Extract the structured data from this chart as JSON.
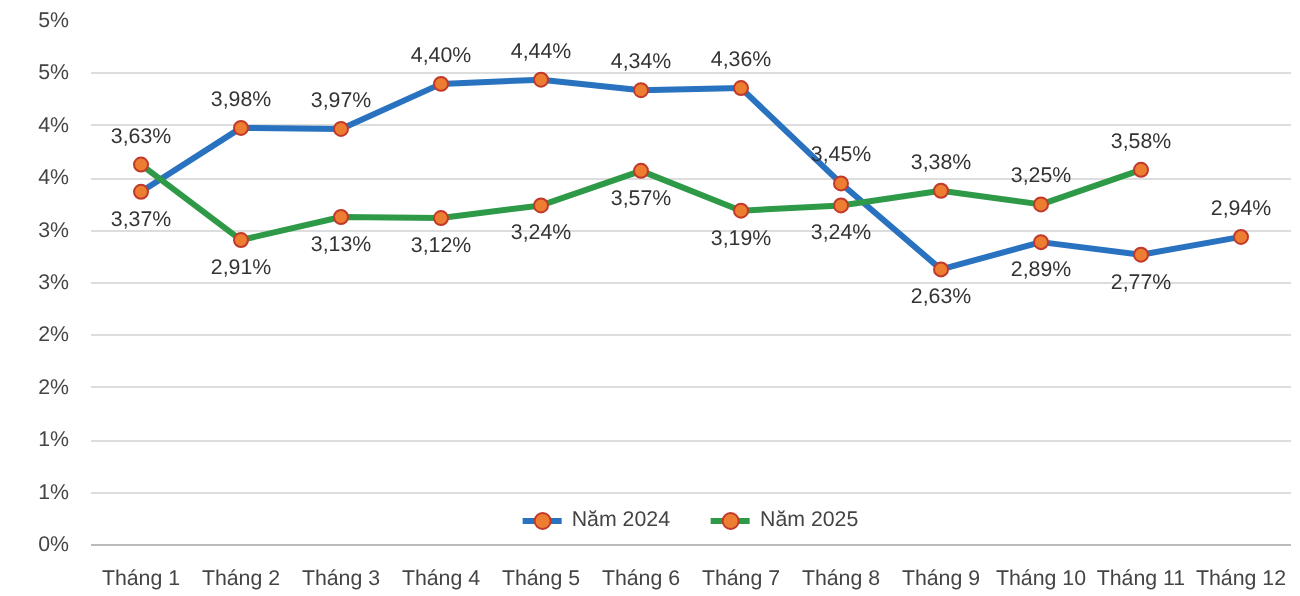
{
  "chart_data": {
    "type": "line",
    "categories": [
      "Tháng 1",
      "Tháng 2",
      "Tháng 3",
      "Tháng 4",
      "Tháng 5",
      "Tháng 6",
      "Tháng 7",
      "Tháng 8",
      "Tháng 9",
      "Tháng 10",
      "Tháng 11",
      "Tháng 12"
    ],
    "series": [
      {
        "name": "Năm 2024",
        "color": "#2872c0",
        "values": [
          3.37,
          3.98,
          3.97,
          4.4,
          4.44,
          4.34,
          4.36,
          3.45,
          2.63,
          2.89,
          2.77,
          2.94
        ],
        "value_labels": [
          "3,37%",
          "3,98%",
          "3,97%",
          "4,40%",
          "4,44%",
          "4,34%",
          "4,36%",
          "3,45%",
          "2,63%",
          "2,89%",
          "2,77%",
          "2,94%"
        ]
      },
      {
        "name": "Năm 2025",
        "color": "#2e9a48",
        "values": [
          3.63,
          2.91,
          3.13,
          3.12,
          3.24,
          3.57,
          3.19,
          3.24,
          3.38,
          3.25,
          3.58,
          null
        ],
        "value_labels": [
          "3,63%",
          "2,91%",
          "3,13%",
          "3,12%",
          "3,24%",
          "3,57%",
          "3,19%",
          "3,24%",
          "3,38%",
          "3,25%",
          "3,58%",
          null
        ]
      }
    ],
    "ylim": [
      0,
      5
    ],
    "yticks": [
      {
        "value": 0,
        "label": "0%"
      },
      {
        "value": 0.5,
        "label": "1%"
      },
      {
        "value": 1,
        "label": "1%"
      },
      {
        "value": 1.5,
        "label": "2%"
      },
      {
        "value": 2,
        "label": "2%"
      },
      {
        "value": 2.5,
        "label": "3%"
      },
      {
        "value": 3,
        "label": "3%"
      },
      {
        "value": 3.5,
        "label": "4%"
      },
      {
        "value": 4,
        "label": "4%"
      },
      {
        "value": 4.5,
        "label": "5%"
      },
      {
        "value": 5,
        "label": "5%"
      }
    ],
    "grid": "y",
    "legend": "bottom",
    "marker": "circle",
    "line_style": "solid"
  }
}
